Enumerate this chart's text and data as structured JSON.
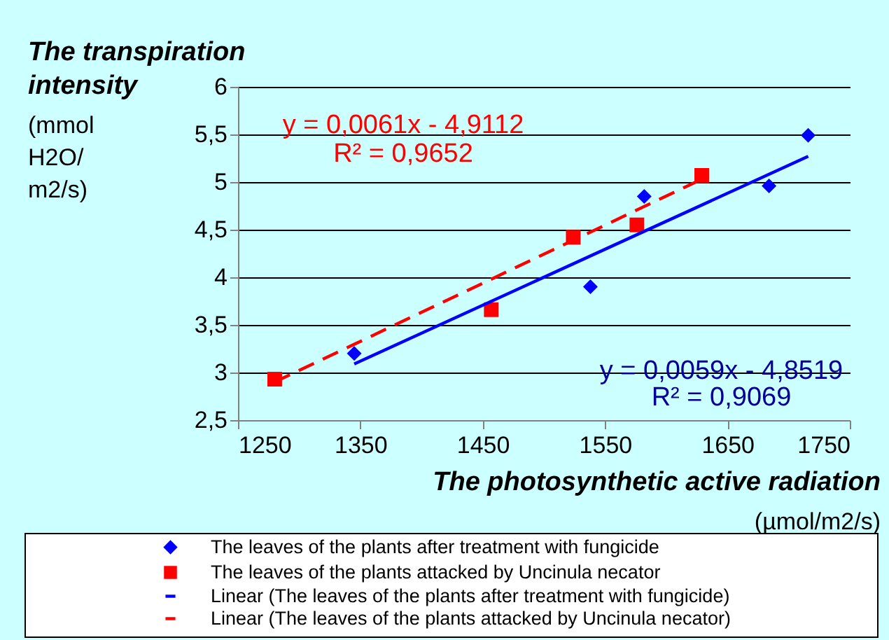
{
  "chart_data": {
    "type": "scatter",
    "xlabel": "The photosynthetic active radiation\n(µmol/m2/s)",
    "ylabel": "The transpiration\nintensity\n(mmol\nH2O/\nm2/s)",
    "xlim": [
      1250,
      1750
    ],
    "xticks": [
      1250,
      1350,
      1450,
      1550,
      1650,
      1750
    ],
    "ylim": [
      2.5,
      6
    ],
    "yticks": [
      {
        "value": 2.5,
        "label": "2,5"
      },
      3,
      {
        "value": 3.5,
        "label": "3,5"
      },
      4,
      {
        "value": 4.5,
        "label": "4,5"
      },
      5,
      {
        "value": 5.5,
        "label": "5,5"
      },
      6
    ],
    "grid": "y",
    "legend": "bottom",
    "series": [
      {
        "name": "The leaves of the plants after treatment with fungicide",
        "color": "#0000ff",
        "marker": "diamond",
        "x": [
          1345,
          1538,
          1582,
          1684,
          1716
        ],
        "values": [
          3.2,
          3.9,
          4.85,
          4.96,
          5.49
        ]
      },
      {
        "name": "The leaves of the plants attacked by Uncinula necator",
        "color": "#ff0000",
        "marker": "square",
        "x": [
          1280,
          1457,
          1524,
          1576,
          1629
        ],
        "values": [
          2.93,
          3.66,
          4.42,
          4.55,
          5.07
        ]
      },
      {
        "name": "Linear (The leaves of the plants after treatment with fungicide)",
        "type": "line",
        "color": "#0000ff",
        "line_style": "solid",
        "x": [
          1345,
          1716
        ],
        "values": [
          3.09,
          5.27
        ]
      },
      {
        "name": "Linear (The leaves of the plants attacked by Uncinula necator)",
        "type": "line",
        "color": "#ff0000",
        "line_style": "dashed",
        "x": [
          1280,
          1629
        ],
        "values": [
          2.9,
          5.03
        ]
      }
    ],
    "annotations": [
      "y = 0,0061x - 4,9112",
      "R² = 0,9652",
      "y = 0,0059x - 4,8519",
      "R² = 0,9069"
    ]
  }
}
